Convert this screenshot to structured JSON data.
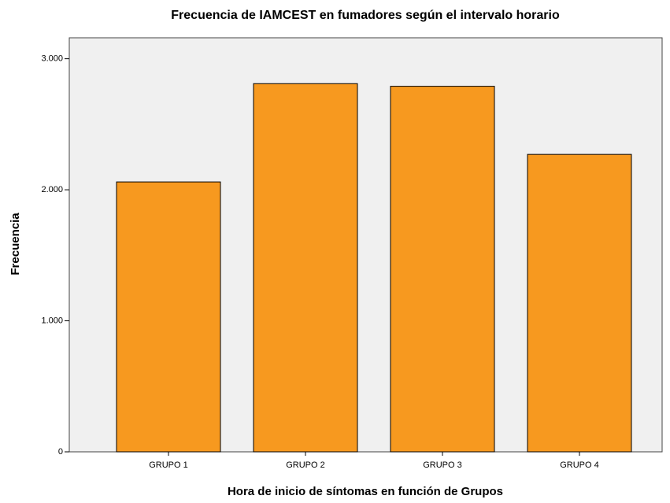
{
  "chart_data": {
    "type": "bar",
    "title": "Frecuencia de IAMCEST en fumadores según el intervalo horario",
    "x_label": "Hora de inicio de síntomas en función de Grupos",
    "y_label": "Frecuencia",
    "categories": [
      "GRUPO 1",
      "GRUPO 2",
      "GRUPO 3",
      "GRUPO 4"
    ],
    "values": [
      2060,
      2810,
      2790,
      2270
    ],
    "color": "#f7991f",
    "ylim": [
      0,
      3160
    ],
    "yticks": [
      0,
      {
        "value": 1000,
        "label": "1.000"
      },
      {
        "value": 2000,
        "label": "2.000"
      },
      {
        "value": 3000,
        "label": "3.000"
      }
    ],
    "grid": false
  }
}
